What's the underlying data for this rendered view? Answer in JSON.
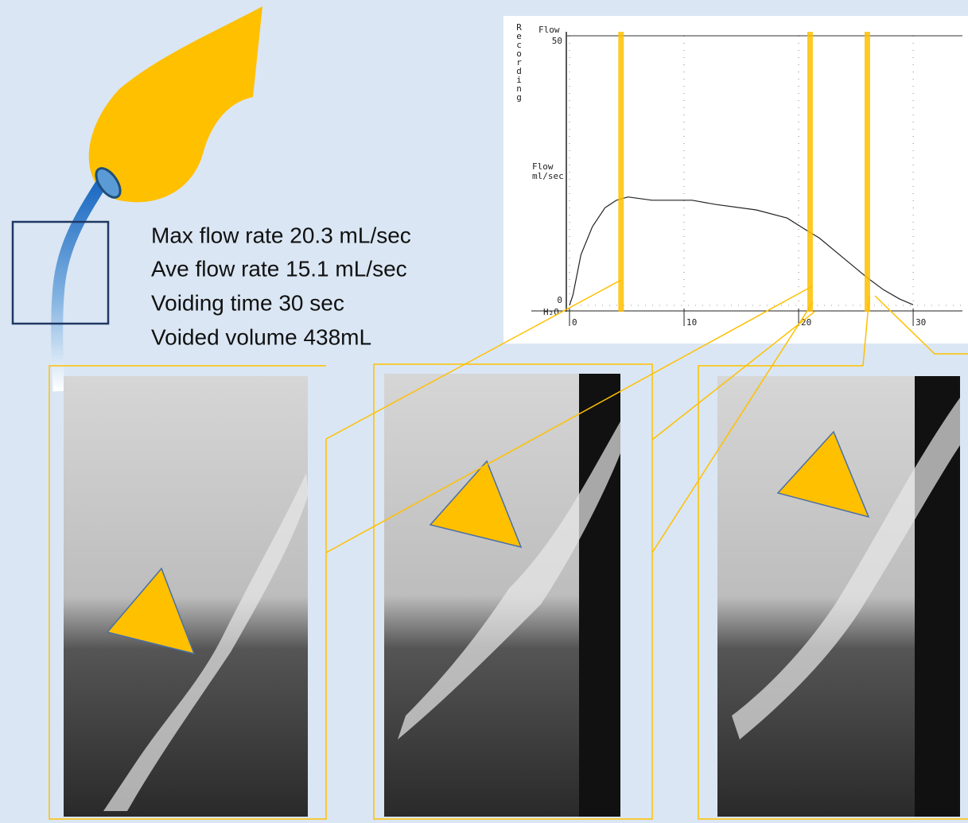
{
  "stats": [
    "Max flow rate 20.3 mL/sec",
    "Ave flow rate 15.1 mL/sec",
    "Voiding time 30 sec",
    "Voided volume 438mL"
  ],
  "chart_data": {
    "type": "line",
    "side_label": "Recording",
    "axis_title": "Flow",
    "y_label": "Flow\nml/sec",
    "baseline_label": "H₂O",
    "x": [
      0,
      0.3,
      1.0,
      2.0,
      3.1,
      4.1,
      5.1,
      7.2,
      10.7,
      12.8,
      16.3,
      19.0,
      20.4,
      21.8,
      23.9,
      26.0,
      27.4,
      28.8,
      30
    ],
    "values": [
      0,
      1.9,
      9.4,
      14.6,
      18.1,
      19.5,
      20.1,
      19.5,
      19.5,
      18.7,
      17.7,
      16.2,
      14.3,
      12.5,
      8.8,
      5.1,
      2.9,
      1.2,
      0.1
    ],
    "color": "#222222",
    "xlim": [
      0,
      34.3
    ],
    "ylim": [
      0,
      50
    ],
    "xticks": [
      0,
      10,
      20,
      30
    ],
    "yticks": [
      0,
      50
    ],
    "highlight_x": [
      4.5,
      21,
      26
    ],
    "highlight_color": "#ffc000",
    "grid": true
  }
}
